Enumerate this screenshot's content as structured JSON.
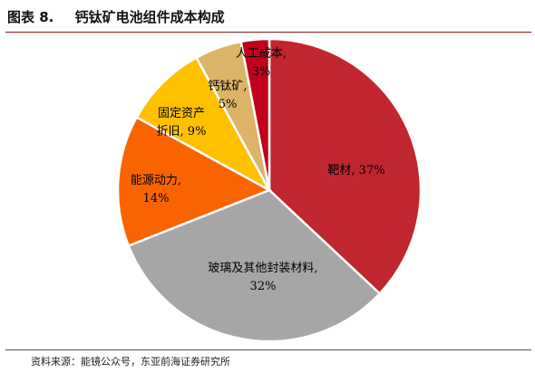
{
  "header": {
    "figure_number": "图表 8.",
    "title": "钙钛矿电池组件成本构成"
  },
  "footer": {
    "source": "资料来源：能镜公众号，东亚前海证券研究所"
  },
  "chart_data": {
    "type": "pie",
    "title": "钙钛矿电池组件成本构成",
    "slices": [
      {
        "name": "靶材",
        "value": 37,
        "value_label": "37%",
        "color": "#c0262d",
        "label_lines": [
          "靶材, 37%"
        ]
      },
      {
        "name": "玻璃及其他封装材料",
        "value": 32,
        "value_label": "32%",
        "color": "#a6a6a6",
        "label_lines": [
          "玻璃及其他封装材料,",
          "32%"
        ]
      },
      {
        "name": "能源动力",
        "value": 14,
        "value_label": "14%",
        "color": "#fa6400",
        "label_lines": [
          "能源动力,",
          "14%"
        ]
      },
      {
        "name": "固定资产折旧",
        "value": 9,
        "value_label": "9%",
        "color": "#ffc000",
        "label_lines": [
          "固定资产",
          "折旧, 9%"
        ]
      },
      {
        "name": "钙钛矿",
        "value": 5,
        "value_label": "5%",
        "color": "#dbb468",
        "label_lines": [
          "钙钛矿,",
          "5%"
        ]
      },
      {
        "name": "人工成本",
        "value": 3,
        "value_label": "3%",
        "color": "#c0001c",
        "label_lines": [
          "人工成本,",
          "3%"
        ]
      }
    ],
    "start_angle_deg": 0,
    "direction": "clockwise",
    "legend": "none"
  }
}
